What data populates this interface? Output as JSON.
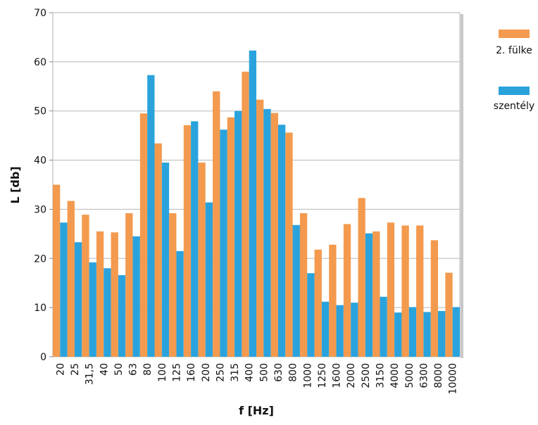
{
  "chart_data": {
    "type": "bar",
    "xlabel": "f [Hz]",
    "ylabel": "L [db]",
    "ylim": [
      0,
      70
    ],
    "yticks": [
      0,
      10,
      20,
      30,
      40,
      50,
      60,
      70
    ],
    "grid": "horizontal",
    "legend_position": "right",
    "categories": [
      "20",
      "25",
      "31,5",
      "40",
      "50",
      "63",
      "80",
      "100",
      "125",
      "160",
      "200",
      "250",
      "315",
      "400",
      "500",
      "630",
      "800",
      "1000",
      "1250",
      "1600",
      "2000",
      "2500",
      "3150",
      "4000",
      "5000",
      "6300",
      "8000",
      "10000"
    ],
    "series": [
      {
        "name": "2. fülke",
        "color": "#F39A4E",
        "values": [
          35,
          31.7,
          28.9,
          25.5,
          25.3,
          29.2,
          49.5,
          43.4,
          29.2,
          47.1,
          39.5,
          54,
          48.7,
          58,
          52.3,
          49.6,
          45.6,
          29.2,
          21.8,
          22.8,
          27,
          32.3,
          25.5,
          27.3,
          26.7,
          26.7,
          23.7,
          17.1
        ]
      },
      {
        "name": "szentély",
        "color": "#2AA3DD",
        "values": [
          27.3,
          23.3,
          19.2,
          18,
          16.6,
          24.5,
          57.3,
          39.5,
          21.5,
          47.9,
          31.4,
          46.2,
          50,
          62.3,
          50.4,
          47.2,
          26.8,
          17,
          11.2,
          10.5,
          11,
          25.1,
          12.2,
          9,
          10.1,
          9.1,
          9.3,
          10.1
        ]
      }
    ]
  }
}
